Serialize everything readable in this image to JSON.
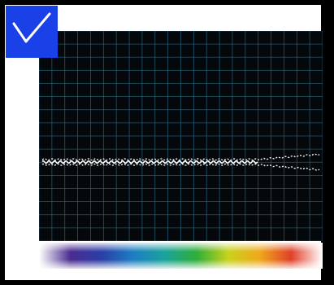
{
  "badge": {
    "icon": "checkmark-icon",
    "color": "#1a40e8",
    "stroke": "#ffffff"
  },
  "scope": {
    "background": "#05080b",
    "grid_color": "#2a6f8c",
    "trace_color": "#f2f2f2",
    "grid": true
  },
  "spectrum": {
    "stops": [
      "#ffffff",
      "#4b2b8f",
      "#2b3fa8",
      "#1c7fc2",
      "#1aa39a",
      "#2fae3a",
      "#c9d21c",
      "#f0a81c",
      "#e0402a",
      "#ffffff"
    ]
  }
}
